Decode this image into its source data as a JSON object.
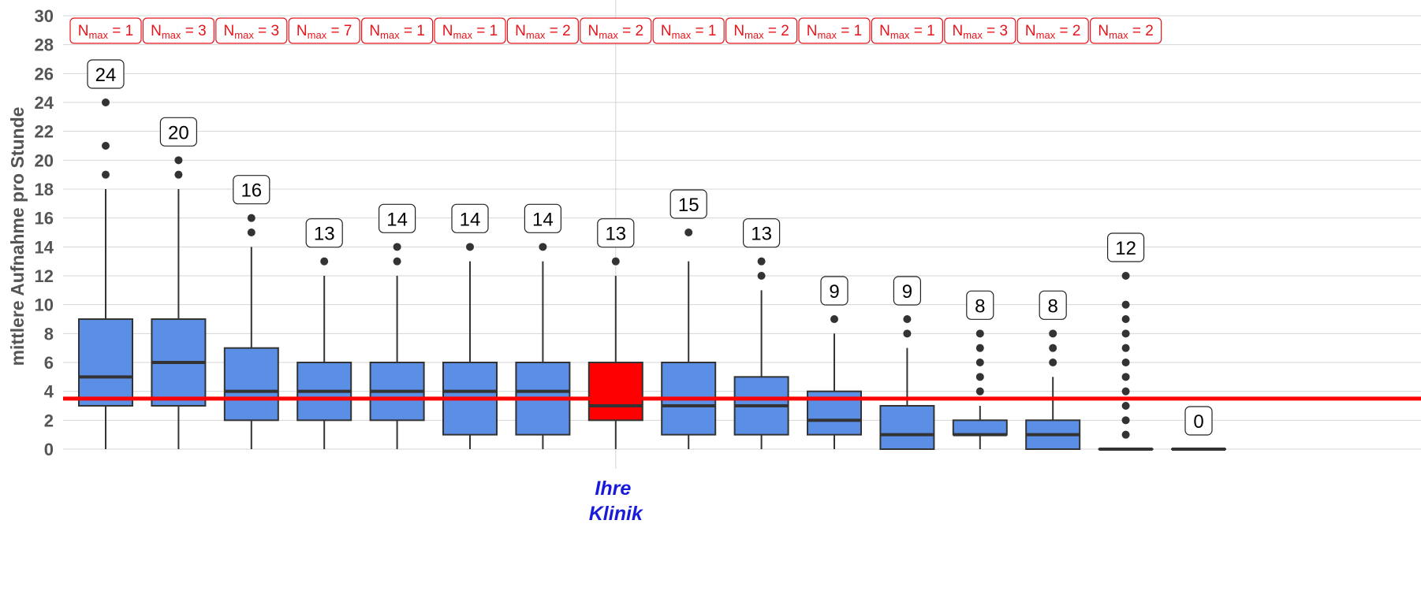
{
  "colors": {
    "box_fill": "#5b8fe6",
    "highlight_fill": "#ff0000",
    "reference_line": "#ff0000",
    "nmax_text": "#e8141b",
    "x_label": "#1a1adb",
    "grid": "#d6d6d6"
  },
  "chart_data": {
    "type": "boxplot",
    "ylabel": "mittlere Aufnahme pro Stunde",
    "ylim": [
      0,
      30
    ],
    "y_ticks": [
      0,
      2,
      4,
      6,
      8,
      10,
      12,
      14,
      16,
      18,
      20,
      22,
      24,
      26,
      28,
      30
    ],
    "grid": true,
    "reference_line": 3.5,
    "highlight_index": 7,
    "x_label_lines": [
      "Ihre",
      "Klinik"
    ],
    "nmax_label": "N",
    "nmax_sub": "max",
    "boxes": [
      {
        "nmax": 1,
        "max_label": "24",
        "whisker_low": 0,
        "q1": 3,
        "median": 5,
        "q3": 9,
        "whisker_high": 18,
        "outliers": [
          19,
          21,
          24
        ]
      },
      {
        "nmax": 3,
        "max_label": "20",
        "whisker_low": 0,
        "q1": 3,
        "median": 6,
        "q3": 9,
        "whisker_high": 18,
        "outliers": [
          19,
          20
        ]
      },
      {
        "nmax": 3,
        "max_label": "16",
        "whisker_low": 0,
        "q1": 2,
        "median": 4,
        "q3": 7,
        "whisker_high": 14,
        "outliers": [
          15,
          16
        ]
      },
      {
        "nmax": 7,
        "max_label": "13",
        "whisker_low": 0,
        "q1": 2,
        "median": 4,
        "q3": 6,
        "whisker_high": 12,
        "outliers": [
          13
        ]
      },
      {
        "nmax": 1,
        "max_label": "14",
        "whisker_low": 0,
        "q1": 2,
        "median": 4,
        "q3": 6,
        "whisker_high": 12,
        "outliers": [
          13,
          14
        ]
      },
      {
        "nmax": 1,
        "max_label": "14",
        "whisker_low": 0,
        "q1": 1,
        "median": 4,
        "q3": 6,
        "whisker_high": 13,
        "outliers": [
          14
        ]
      },
      {
        "nmax": 2,
        "max_label": "14",
        "whisker_low": 0,
        "q1": 1,
        "median": 4,
        "q3": 6,
        "whisker_high": 13,
        "outliers": [
          14
        ]
      },
      {
        "nmax": 2,
        "max_label": "13",
        "whisker_low": 0,
        "q1": 2,
        "median": 3,
        "q3": 6,
        "whisker_high": 12,
        "outliers": [
          13
        ]
      },
      {
        "nmax": 1,
        "max_label": "15",
        "whisker_low": 0,
        "q1": 1,
        "median": 3,
        "q3": 6,
        "whisker_high": 13,
        "outliers": [
          15
        ]
      },
      {
        "nmax": 2,
        "max_label": "13",
        "whisker_low": 0,
        "q1": 1,
        "median": 3,
        "q3": 5,
        "whisker_high": 11,
        "outliers": [
          12,
          13
        ]
      },
      {
        "nmax": 1,
        "max_label": "9",
        "whisker_low": 0,
        "q1": 1,
        "median": 2,
        "q3": 4,
        "whisker_high": 8,
        "outliers": [
          9
        ]
      },
      {
        "nmax": 1,
        "max_label": "9",
        "whisker_low": 0,
        "q1": 0,
        "median": 1,
        "q3": 3,
        "whisker_high": 7,
        "outliers": [
          8,
          9
        ]
      },
      {
        "nmax": 3,
        "max_label": "8",
        "whisker_low": 0,
        "q1": 1,
        "median": 1,
        "q3": 2,
        "whisker_high": 3,
        "outliers": [
          4,
          5,
          6,
          7,
          8
        ]
      },
      {
        "nmax": 2,
        "max_label": "8",
        "whisker_low": 0,
        "q1": 0,
        "median": 1,
        "q3": 2,
        "whisker_high": 5,
        "outliers": [
          6,
          7,
          8
        ]
      },
      {
        "nmax": 2,
        "max_label": "12",
        "whisker_low": 0,
        "q1": 0,
        "median": 0,
        "q3": 0,
        "whisker_high": 0,
        "outliers": [
          1,
          2,
          3,
          4,
          5,
          6,
          7,
          8,
          9,
          10,
          12
        ]
      },
      {
        "nmax": null,
        "max_label": "0",
        "whisker_low": 0,
        "q1": 0,
        "median": 0,
        "q3": 0,
        "whisker_high": 0,
        "outliers": []
      }
    ]
  }
}
